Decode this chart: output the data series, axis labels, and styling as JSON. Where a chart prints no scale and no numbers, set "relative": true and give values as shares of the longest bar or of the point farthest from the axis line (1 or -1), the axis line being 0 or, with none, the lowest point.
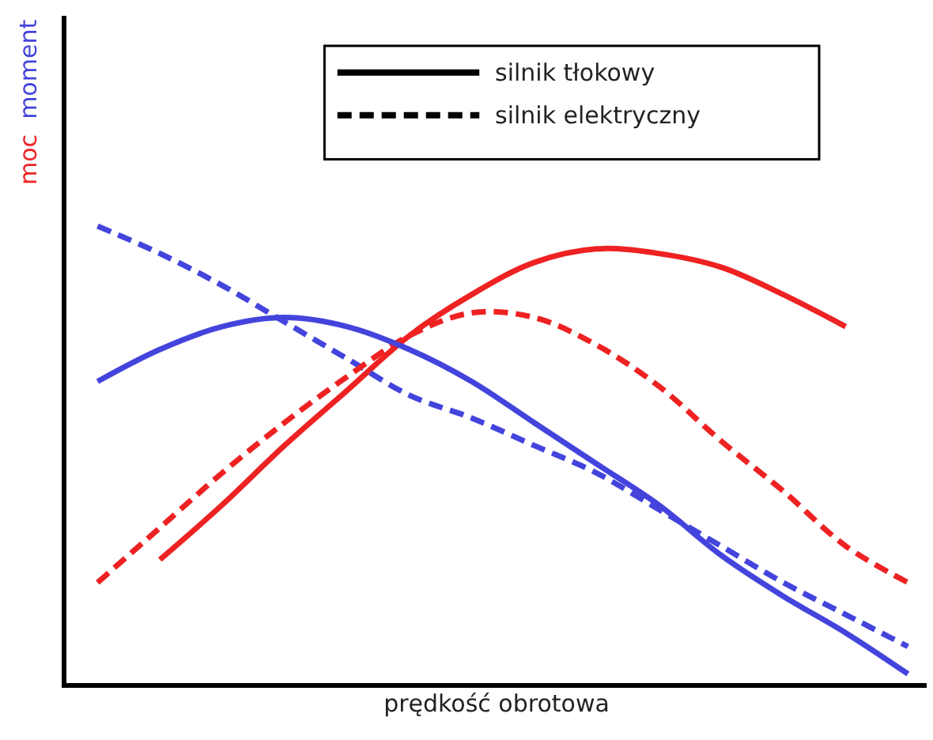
{
  "chart_data": {
    "type": "line",
    "relative": true,
    "xlabel": "prędkość obrotowa",
    "ylabel": "moc moment",
    "categories": [
      null,
      null,
      null,
      null,
      null,
      null,
      null,
      null,
      null,
      null,
      null,
      null,
      null,
      null
    ],
    "series": [
      {
        "color": "#ee2222",
        "line_style": "solid",
        "values": [
          null,
          0.27,
          0.39,
          0.52,
          0.64,
          0.76,
          0.85,
          0.92,
          0.95,
          0.94,
          0.91,
          0.85,
          0.78,
          null
        ]
      },
      {
        "color": "#4444dd",
        "line_style": "dashed",
        "values": [
          1.0,
          0.94,
          0.87,
          0.79,
          0.71,
          0.63,
          0.58,
          0.52,
          0.46,
          0.38,
          0.3,
          0.22,
          0.15,
          0.08
        ]
      },
      {
        "color": "#ee2222",
        "line_style": "dashed",
        "values": [
          0.22,
          0.34,
          0.46,
          0.57,
          0.67,
          0.76,
          0.81,
          0.8,
          0.74,
          0.65,
          0.53,
          0.42,
          0.3,
          0.22
        ]
      },
      {
        "color": "#4444dd",
        "line_style": "solid",
        "values": [
          0.66,
          0.73,
          0.78,
          0.8,
          0.78,
          0.73,
          0.66,
          0.57,
          0.48,
          0.39,
          0.28,
          0.19,
          0.11,
          0.02
        ]
      }
    ],
    "annotations": [
      "silnik tłokowy",
      "silnik elektryczny"
    ],
    "marker": "none",
    "tick_labels": false
  }
}
